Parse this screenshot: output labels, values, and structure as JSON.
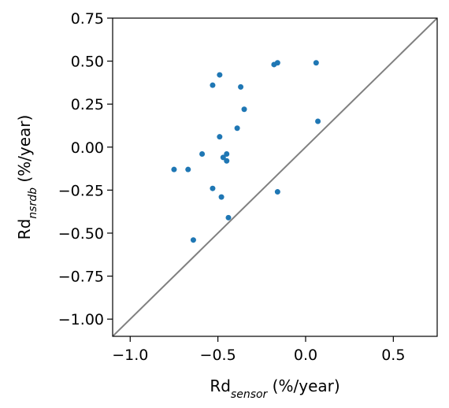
{
  "chart_data": {
    "type": "scatter",
    "title": "",
    "xlabel": {
      "base": "Rd",
      "sub": "sensor",
      "unit": " (%/year)"
    },
    "ylabel": {
      "base": "Rd",
      "sub": "nsrdb",
      "unit": " (%/year)"
    },
    "xlim": [
      -1.1,
      0.75
    ],
    "ylim": [
      -1.1,
      0.75
    ],
    "x_ticks": [
      -1.0,
      -0.5,
      0.0,
      0.5
    ],
    "x_tick_labels": [
      "−1.0",
      "−0.5",
      "0.0",
      "0.5"
    ],
    "y_ticks": [
      0.75,
      0.5,
      0.25,
      0.0,
      -0.25,
      -0.5,
      -0.75,
      -1.0
    ],
    "y_tick_labels": [
      "0.75",
      "0.50",
      "0.25",
      "0.00",
      "−0.25",
      "−0.50",
      "−0.75",
      "−1.00"
    ],
    "grid": false,
    "reference_line": {
      "type": "y=x",
      "color": "#808080"
    },
    "point_color": "#1f77b4",
    "points": [
      {
        "x": -0.49,
        "y": 0.42
      },
      {
        "x": -0.53,
        "y": 0.36
      },
      {
        "x": -0.37,
        "y": 0.35
      },
      {
        "x": -0.18,
        "y": 0.48
      },
      {
        "x": -0.16,
        "y": 0.49
      },
      {
        "x": 0.06,
        "y": 0.49
      },
      {
        "x": -0.35,
        "y": 0.22
      },
      {
        "x": -0.39,
        "y": 0.11
      },
      {
        "x": 0.07,
        "y": 0.15
      },
      {
        "x": -0.49,
        "y": 0.06
      },
      {
        "x": -0.59,
        "y": -0.04
      },
      {
        "x": -0.45,
        "y": -0.04
      },
      {
        "x": -0.47,
        "y": -0.06
      },
      {
        "x": -0.45,
        "y": -0.08
      },
      {
        "x": -0.75,
        "y": -0.13
      },
      {
        "x": -0.67,
        "y": -0.13
      },
      {
        "x": -0.53,
        "y": -0.24
      },
      {
        "x": -0.16,
        "y": -0.26
      },
      {
        "x": -0.48,
        "y": -0.29
      },
      {
        "x": -0.44,
        "y": -0.41
      },
      {
        "x": -0.64,
        "y": -0.54
      }
    ]
  }
}
